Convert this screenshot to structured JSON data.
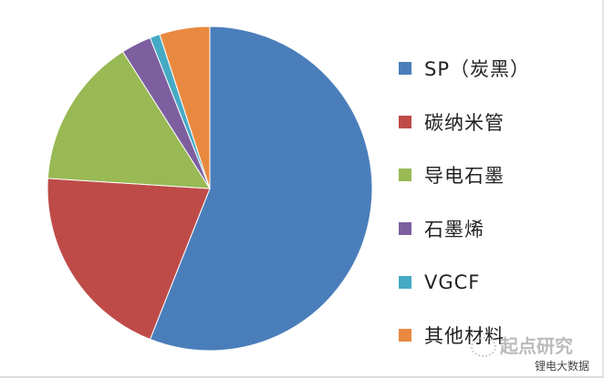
{
  "chart_data": {
    "type": "pie",
    "categories": [
      "SP（炭黑）",
      "碳纳米管",
      "导电石墨",
      "石墨烯",
      "VGCF",
      "其他材料"
    ],
    "values": [
      56,
      20,
      15,
      3,
      1,
      5
    ],
    "unit": "%",
    "colors": [
      "#4a7ebb",
      "#be4b48",
      "#98b954",
      "#7d5fa0",
      "#46aac5",
      "#e8893f"
    ],
    "start_angle": "top, clockwise",
    "legend_position": "right"
  },
  "watermark": {
    "brand": "起点研究",
    "sub": "锂电大数据"
  }
}
